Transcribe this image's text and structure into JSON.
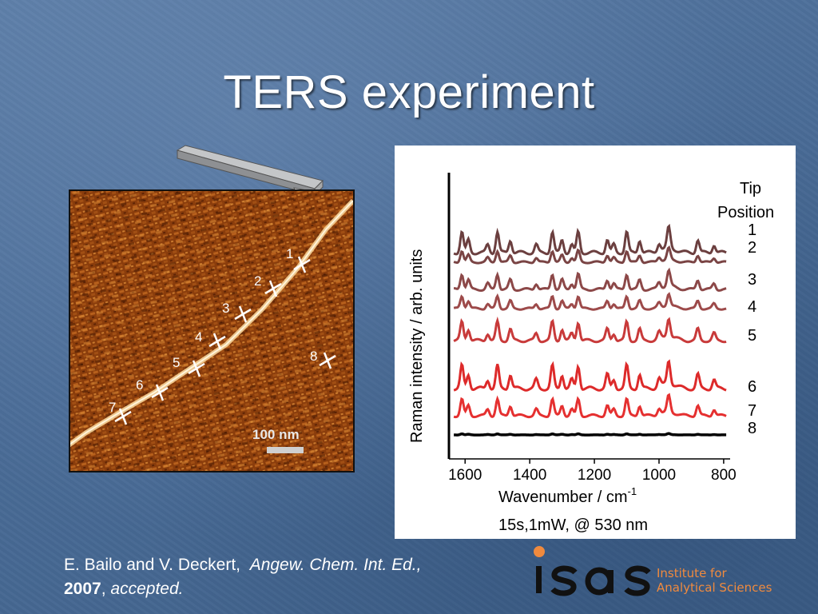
{
  "slide": {
    "title": "TERS experiment"
  },
  "afm_image": {
    "scale_bar_label": "100 nm",
    "positions": [
      "1",
      "2",
      "3",
      "4",
      "5",
      "6",
      "7",
      "8"
    ]
  },
  "chart_data": {
    "type": "line",
    "xlabel": "Wavenumber / cm",
    "xlabel_superscript": "-1",
    "ylabel": "Raman intensity / arb. units",
    "x_ticks": [
      1600,
      1400,
      1200,
      1000,
      800
    ],
    "xlim": [
      1650,
      780
    ],
    "legend_title": "Tip Position",
    "series": [
      {
        "name": "1",
        "color": "#6b3f3f"
      },
      {
        "name": "2",
        "color": "#7a4444"
      },
      {
        "name": "3",
        "color": "#8c4848"
      },
      {
        "name": "4",
        "color": "#9d4a4a"
      },
      {
        "name": "5",
        "color": "#c83a3a"
      },
      {
        "name": "6",
        "color": "#dd2a2a"
      },
      {
        "name": "7",
        "color": "#e53030"
      },
      {
        "name": "8",
        "color": "#000000"
      }
    ],
    "peaks_cm": [
      1610,
      1590,
      1530,
      1500,
      1460,
      1380,
      1330,
      1300,
      1270,
      1250,
      1160,
      1140,
      1100,
      1060,
      1000,
      970,
      880,
      830
    ]
  },
  "caption": "15s,1mW, @ 530 nm",
  "reference": {
    "authors": "E. Bailo and V. Deckert,",
    "journal": "Angew. Chem. Int. Ed.,",
    "year": "2007",
    "sep": ",",
    "status": "accepted."
  },
  "logo": {
    "line1": "Institute for",
    "line2": "Analytical Sciences",
    "accent": "#f08a3e"
  }
}
